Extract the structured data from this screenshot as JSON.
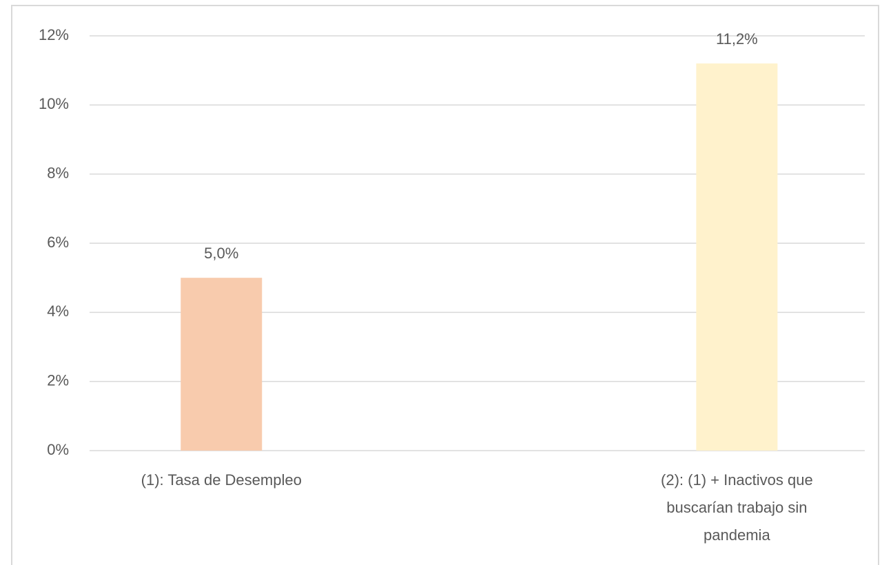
{
  "chart_data": {
    "type": "bar",
    "categories": [
      "(1): Tasa de Desempleo",
      "(2): (1) + Inactivos que buscarían trabajo sin pandemia"
    ],
    "values": [
      5.0,
      11.2
    ],
    "value_labels": [
      "5,0%",
      "11,2%"
    ],
    "colors": [
      "#f8cbad",
      "#fff2cc"
    ],
    "ylim": [
      0,
      12
    ],
    "yticks": [
      {
        "value": 0,
        "label": "0%"
      },
      {
        "value": 2,
        "label": "2%"
      },
      {
        "value": 4,
        "label": "4%"
      },
      {
        "value": 6,
        "label": "6%"
      },
      {
        "value": 8,
        "label": "8%"
      },
      {
        "value": 10,
        "label": "10%"
      },
      {
        "value": 12,
        "label": "12%"
      }
    ],
    "grid": true
  }
}
